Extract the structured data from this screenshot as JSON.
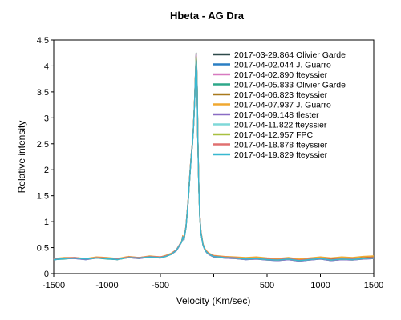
{
  "chart_data": {
    "type": "line",
    "title": "Hbeta - AG Dra",
    "xlabel": "Velocity (Km/sec)",
    "ylabel": "Relative intensity",
    "xlim": [
      -1500,
      1500
    ],
    "ylim": [
      0,
      4.5
    ],
    "xticks": [
      "-1500",
      "-1000",
      "-500",
      "",
      "500",
      "1000",
      "1500"
    ],
    "yticks": [
      "0",
      "0.5",
      "1",
      "1.5",
      "2",
      "2.5",
      "3",
      "3.5",
      "4",
      "4.5"
    ],
    "grid": false,
    "legend_position": "top-right",
    "x": [
      -1500,
      -1400,
      -1300,
      -1200,
      -1100,
      -1000,
      -900,
      -800,
      -700,
      -600,
      -500,
      -450,
      -400,
      -350,
      -320,
      -300,
      -290,
      -280,
      -260,
      -240,
      -220,
      -210,
      -200,
      -190,
      -180,
      -170,
      -165,
      -160,
      -155,
      -150,
      -140,
      -130,
      -120,
      -100,
      -80,
      -60,
      -40,
      -20,
      0,
      50,
      100,
      200,
      300,
      400,
      500,
      600,
      700,
      800,
      900,
      1000,
      1100,
      1200,
      1300,
      1400,
      1500
    ],
    "series": [
      {
        "name": "2017-03-29.864  Olivier Garde",
        "color": "#2e4a4a",
        "values": [
          0.27,
          0.29,
          0.3,
          0.28,
          0.31,
          0.29,
          0.27,
          0.32,
          0.3,
          0.33,
          0.31,
          0.34,
          0.38,
          0.45,
          0.55,
          0.62,
          0.72,
          0.65,
          0.9,
          1.4,
          2.0,
          2.3,
          2.5,
          2.8,
          3.3,
          3.9,
          4.25,
          4.05,
          3.6,
          2.7,
          1.7,
          1.1,
          0.8,
          0.55,
          0.45,
          0.4,
          0.37,
          0.35,
          0.33,
          0.32,
          0.31,
          0.3,
          0.28,
          0.29,
          0.27,
          0.26,
          0.28,
          0.25,
          0.27,
          0.29,
          0.26,
          0.28,
          0.27,
          0.29,
          0.3
        ]
      },
      {
        "name": "2017-04-02.044  J. Guarro",
        "color": "#2a7fc4",
        "values": [
          0.26,
          0.3,
          0.29,
          0.27,
          0.3,
          0.3,
          0.28,
          0.31,
          0.29,
          0.32,
          0.3,
          0.33,
          0.37,
          0.44,
          0.54,
          0.61,
          0.7,
          0.64,
          0.88,
          1.38,
          1.98,
          2.28,
          2.48,
          2.78,
          3.28,
          3.85,
          4.2,
          4.0,
          3.55,
          2.68,
          1.68,
          1.08,
          0.79,
          0.54,
          0.44,
          0.39,
          0.36,
          0.34,
          0.32,
          0.31,
          0.3,
          0.29,
          0.27,
          0.28,
          0.26,
          0.25,
          0.27,
          0.24,
          0.26,
          0.28,
          0.25,
          0.27,
          0.26,
          0.28,
          0.29
        ]
      },
      {
        "name": "2017-04-02.890  fteyssier",
        "color": "#d77ac0",
        "values": [
          0.28,
          0.29,
          0.31,
          0.28,
          0.31,
          0.29,
          0.28,
          0.32,
          0.31,
          0.33,
          0.31,
          0.34,
          0.38,
          0.46,
          0.56,
          0.62,
          0.72,
          0.66,
          0.91,
          1.42,
          2.02,
          2.32,
          2.52,
          2.82,
          3.32,
          3.92,
          4.22,
          4.02,
          3.58,
          2.72,
          1.72,
          1.12,
          0.81,
          0.56,
          0.46,
          0.41,
          0.38,
          0.35,
          0.34,
          0.33,
          0.32,
          0.31,
          0.29,
          0.3,
          0.28,
          0.27,
          0.29,
          0.26,
          0.28,
          0.3,
          0.27,
          0.29,
          0.28,
          0.3,
          0.31
        ]
      },
      {
        "name": "2017-04-05.833  Olivier Garde",
        "color": "#2ea88a",
        "values": [
          0.27,
          0.28,
          0.3,
          0.29,
          0.3,
          0.28,
          0.27,
          0.31,
          0.3,
          0.32,
          0.31,
          0.33,
          0.37,
          0.45,
          0.55,
          0.61,
          0.71,
          0.65,
          0.89,
          1.39,
          1.99,
          2.29,
          2.49,
          2.79,
          3.29,
          3.88,
          4.15,
          3.98,
          3.52,
          2.66,
          1.66,
          1.07,
          0.78,
          0.55,
          0.45,
          0.4,
          0.37,
          0.34,
          0.33,
          0.32,
          0.31,
          0.3,
          0.28,
          0.29,
          0.27,
          0.26,
          0.28,
          0.25,
          0.27,
          0.29,
          0.26,
          0.28,
          0.27,
          0.29,
          0.3
        ]
      },
      {
        "name": "2017-04-06.823  fteyssier",
        "color": "#a8791c",
        "values": [
          0.28,
          0.3,
          0.3,
          0.28,
          0.31,
          0.3,
          0.28,
          0.32,
          0.3,
          0.33,
          0.32,
          0.34,
          0.38,
          0.45,
          0.55,
          0.62,
          0.72,
          0.66,
          0.9,
          1.41,
          2.01,
          2.31,
          2.51,
          2.81,
          3.31,
          3.9,
          4.18,
          4.01,
          3.57,
          2.7,
          1.7,
          1.1,
          0.8,
          0.56,
          0.46,
          0.41,
          0.38,
          0.36,
          0.34,
          0.33,
          0.32,
          0.31,
          0.3,
          0.31,
          0.29,
          0.28,
          0.3,
          0.27,
          0.29,
          0.31,
          0.28,
          0.3,
          0.29,
          0.31,
          0.32
        ]
      },
      {
        "name": "2017-04-07.937  J. Guarro",
        "color": "#f0a830",
        "values": [
          0.29,
          0.31,
          0.31,
          0.29,
          0.32,
          0.31,
          0.29,
          0.33,
          0.31,
          0.34,
          0.32,
          0.35,
          0.39,
          0.46,
          0.56,
          0.63,
          0.73,
          0.67,
          0.91,
          1.42,
          2.02,
          2.32,
          2.52,
          2.82,
          3.32,
          3.91,
          4.1,
          3.96,
          3.54,
          2.69,
          1.69,
          1.11,
          0.82,
          0.57,
          0.47,
          0.42,
          0.39,
          0.37,
          0.35,
          0.34,
          0.33,
          0.32,
          0.31,
          0.32,
          0.3,
          0.29,
          0.31,
          0.28,
          0.3,
          0.32,
          0.3,
          0.32,
          0.31,
          0.33,
          0.34
        ]
      },
      {
        "name": "2017-04-09.148  tlester",
        "color": "#8a6cc4",
        "values": [
          0.27,
          0.29,
          0.29,
          0.27,
          0.3,
          0.29,
          0.27,
          0.31,
          0.29,
          0.32,
          0.3,
          0.33,
          0.37,
          0.44,
          0.54,
          0.61,
          0.7,
          0.64,
          0.88,
          1.38,
          1.98,
          2.28,
          2.48,
          2.78,
          3.28,
          3.86,
          4.12,
          3.95,
          3.5,
          2.65,
          1.66,
          1.07,
          0.78,
          0.54,
          0.44,
          0.39,
          0.36,
          0.34,
          0.32,
          0.31,
          0.3,
          0.29,
          0.27,
          0.28,
          0.26,
          0.25,
          0.27,
          0.24,
          0.26,
          0.28,
          0.25,
          0.27,
          0.26,
          0.28,
          0.29
        ]
      },
      {
        "name": "2017-04-11.822  fteyssier",
        "color": "#7fd8d8",
        "values": [
          0.28,
          0.29,
          0.3,
          0.28,
          0.31,
          0.29,
          0.28,
          0.32,
          0.3,
          0.33,
          0.31,
          0.34,
          0.38,
          0.45,
          0.55,
          0.62,
          0.71,
          0.65,
          0.9,
          1.4,
          2.0,
          2.3,
          2.5,
          2.8,
          3.3,
          3.89,
          4.16,
          3.99,
          3.55,
          2.69,
          1.69,
          1.09,
          0.8,
          0.55,
          0.45,
          0.4,
          0.37,
          0.35,
          0.33,
          0.32,
          0.31,
          0.3,
          0.28,
          0.29,
          0.27,
          0.26,
          0.28,
          0.25,
          0.27,
          0.29,
          0.26,
          0.28,
          0.27,
          0.29,
          0.3
        ]
      },
      {
        "name": "2017-04-12.957  FPC",
        "color": "#a8c040",
        "values": [
          0.27,
          0.3,
          0.3,
          0.28,
          0.3,
          0.3,
          0.27,
          0.31,
          0.3,
          0.32,
          0.31,
          0.33,
          0.37,
          0.45,
          0.55,
          0.61,
          0.71,
          0.65,
          0.89,
          1.39,
          1.99,
          2.29,
          2.49,
          2.79,
          3.29,
          3.87,
          4.14,
          3.97,
          3.53,
          2.67,
          1.67,
          1.08,
          0.79,
          0.55,
          0.45,
          0.4,
          0.37,
          0.35,
          0.33,
          0.32,
          0.31,
          0.3,
          0.28,
          0.29,
          0.27,
          0.26,
          0.28,
          0.25,
          0.27,
          0.29,
          0.26,
          0.28,
          0.27,
          0.29,
          0.3
        ]
      },
      {
        "name": "2017-04-18.878  fteyssier",
        "color": "#e07070",
        "values": [
          0.28,
          0.3,
          0.31,
          0.28,
          0.31,
          0.3,
          0.28,
          0.32,
          0.31,
          0.33,
          0.32,
          0.34,
          0.38,
          0.46,
          0.56,
          0.62,
          0.72,
          0.66,
          0.91,
          1.41,
          2.01,
          2.31,
          2.51,
          2.81,
          3.31,
          3.9,
          4.05,
          3.93,
          3.5,
          2.66,
          1.68,
          1.1,
          0.81,
          0.56,
          0.46,
          0.41,
          0.38,
          0.36,
          0.34,
          0.33,
          0.32,
          0.31,
          0.29,
          0.3,
          0.28,
          0.27,
          0.29,
          0.26,
          0.28,
          0.3,
          0.27,
          0.29,
          0.28,
          0.3,
          0.31
        ]
      },
      {
        "name": "2017-04-19.829  fteyssier",
        "color": "#38b8d0",
        "values": [
          0.27,
          0.29,
          0.3,
          0.28,
          0.3,
          0.29,
          0.27,
          0.31,
          0.3,
          0.32,
          0.31,
          0.33,
          0.37,
          0.45,
          0.55,
          0.61,
          0.71,
          0.65,
          0.89,
          1.39,
          1.99,
          2.29,
          2.49,
          2.79,
          3.29,
          3.86,
          4.1,
          3.94,
          3.51,
          2.66,
          1.67,
          1.08,
          0.79,
          0.55,
          0.45,
          0.4,
          0.37,
          0.35,
          0.33,
          0.32,
          0.31,
          0.3,
          0.28,
          0.29,
          0.27,
          0.26,
          0.28,
          0.25,
          0.27,
          0.29,
          0.26,
          0.28,
          0.27,
          0.29,
          0.3
        ]
      }
    ]
  }
}
